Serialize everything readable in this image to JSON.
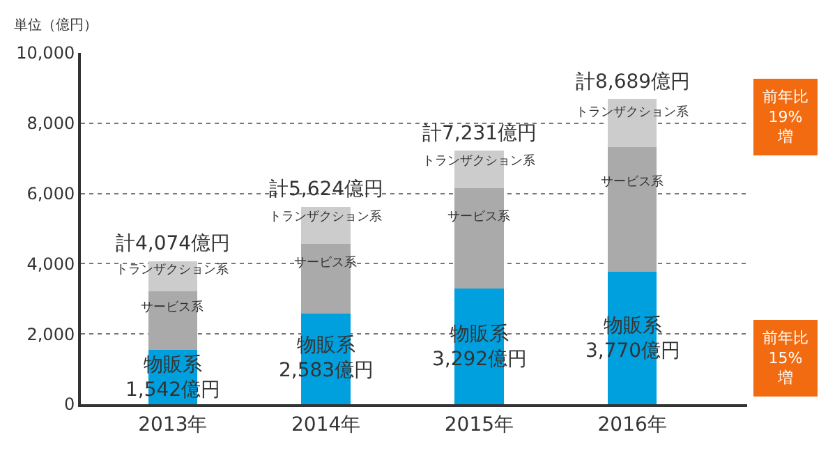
{
  "chart_data": {
    "type": "bar",
    "stacked": true,
    "ylabel": "単位（億円）",
    "categories": [
      "2013年",
      "2014年",
      "2015年",
      "2016年"
    ],
    "series": [
      {
        "name": "物販系",
        "color": "#00a0de",
        "values": [
          1542,
          2583,
          3292,
          3770
        ],
        "value_labels": [
          "1,542億円",
          "2,583億円",
          "3,292億円",
          "3,770億円"
        ]
      },
      {
        "name": "サービス系",
        "color": "#aaaaaa",
        "values": [
          1680,
          1990,
          2860,
          3550
        ]
      },
      {
        "name": "トランザクション系",
        "color": "#cccccc",
        "values": [
          850,
          1050,
          1080,
          1370
        ]
      }
    ],
    "totals": [
      "計4,074億円",
      "計5,624億円",
      "計7,231億円",
      "計8,689億円"
    ],
    "ylim": [
      0,
      10000
    ],
    "yticks": [
      {
        "value": 0,
        "label": "0"
      },
      {
        "value": 2000,
        "label": "2,000"
      },
      {
        "value": 4000,
        "label": "4,000"
      },
      {
        "value": 6000,
        "label": "6,000"
      },
      {
        "value": 8000,
        "label": "8,000"
      },
      {
        "value": 10000,
        "label": "10,000"
      }
    ],
    "grid": "y",
    "annotations": [
      "前年比\n19%\n増",
      "前年比\n15%\n増"
    ]
  }
}
